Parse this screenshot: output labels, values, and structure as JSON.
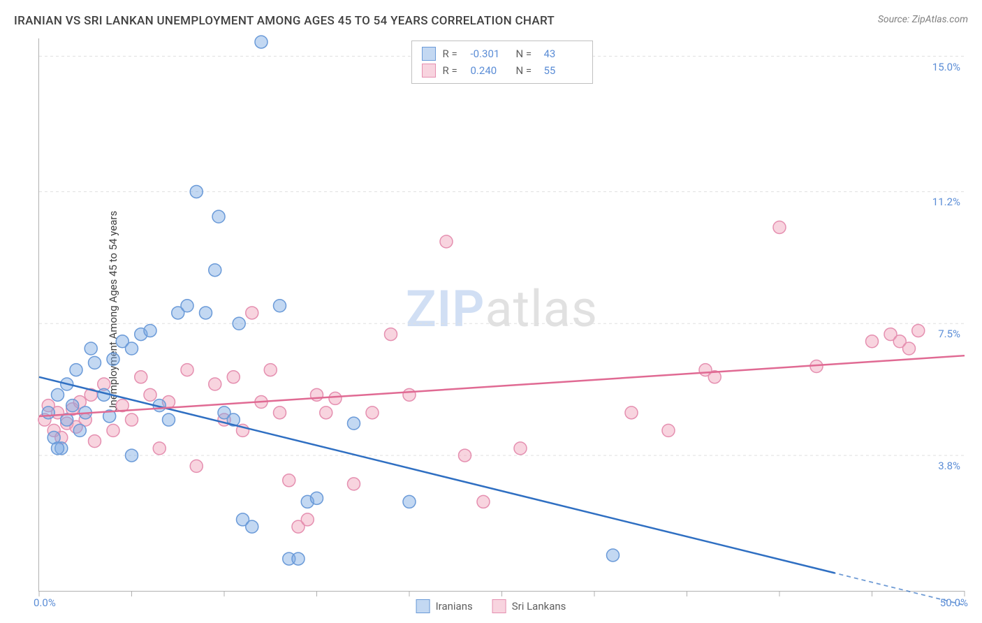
{
  "title": "IRANIAN VS SRI LANKAN UNEMPLOYMENT AMONG AGES 45 TO 54 YEARS CORRELATION CHART",
  "source": "Source: ZipAtlas.com",
  "ylabel": "Unemployment Among Ages 45 to 54 years",
  "watermark_a": "ZIP",
  "watermark_b": "atlas",
  "colors": {
    "blue_fill": "rgba(122,168,226,0.45)",
    "blue_stroke": "#6a9ad8",
    "pink_fill": "rgba(240,160,185,0.45)",
    "pink_stroke": "#e58fb0",
    "blue_line": "#2f6fc2",
    "pink_line": "#e06a93",
    "accent_text": "#5b8dd6",
    "grid": "#e0e0e0",
    "axis": "#b0b0b0",
    "background": "#ffffff"
  },
  "chart": {
    "type": "scatter",
    "xlim": [
      0,
      50
    ],
    "ylim": [
      0,
      15.5
    ],
    "x_ticks": [
      0,
      5,
      10,
      15,
      20,
      25,
      30,
      35,
      40,
      45,
      50
    ],
    "y_gridlines": [
      3.8,
      7.5,
      11.2,
      15.0
    ],
    "x_axis_labels": [
      {
        "v": 0,
        "t": "0.0%"
      },
      {
        "v": 50,
        "t": "50.0%"
      }
    ],
    "y_axis_labels": [
      {
        "v": 3.8,
        "t": "3.8%"
      },
      {
        "v": 7.5,
        "t": "7.5%"
      },
      {
        "v": 11.2,
        "t": "11.2%"
      },
      {
        "v": 15.0,
        "t": "15.0%"
      }
    ],
    "marker_radius": 9,
    "marker_stroke_width": 1.5,
    "line_width": 2.5,
    "title_fontsize": 17,
    "label_fontsize": 15
  },
  "stats": {
    "blue": {
      "R": "-0.301",
      "N": "43"
    },
    "pink": {
      "R": "0.240",
      "N": "55"
    }
  },
  "bottom_legend": {
    "blue": "Iranians",
    "pink": "Sri Lankans"
  },
  "series": {
    "iranians": {
      "points": [
        [
          0.5,
          5.0
        ],
        [
          0.8,
          4.3
        ],
        [
          1.0,
          5.5
        ],
        [
          1.2,
          4.0
        ],
        [
          1.5,
          4.8
        ],
        [
          1.5,
          5.8
        ],
        [
          1.8,
          5.2
        ],
        [
          2.0,
          6.2
        ],
        [
          2.2,
          4.5
        ],
        [
          2.5,
          5.0
        ],
        [
          2.8,
          6.8
        ],
        [
          3.0,
          6.4
        ],
        [
          3.5,
          5.5
        ],
        [
          3.8,
          4.9
        ],
        [
          4.0,
          6.5
        ],
        [
          4.5,
          7.0
        ],
        [
          5.0,
          6.8
        ],
        [
          5.5,
          7.2
        ],
        [
          6.0,
          7.3
        ],
        [
          6.5,
          5.2
        ],
        [
          7.0,
          4.8
        ],
        [
          7.5,
          7.8
        ],
        [
          8.0,
          8.0
        ],
        [
          8.5,
          11.2
        ],
        [
          9.0,
          7.8
        ],
        [
          9.5,
          9.0
        ],
        [
          9.7,
          10.5
        ],
        [
          10.0,
          5.0
        ],
        [
          10.5,
          4.8
        ],
        [
          10.8,
          7.5
        ],
        [
          5.0,
          3.8
        ],
        [
          11.0,
          2.0
        ],
        [
          11.5,
          1.8
        ],
        [
          12.0,
          15.4
        ],
        [
          13.0,
          8.0
        ],
        [
          13.5,
          0.9
        ],
        [
          14.0,
          0.9
        ],
        [
          14.5,
          2.5
        ],
        [
          15.0,
          2.6
        ],
        [
          17.0,
          4.7
        ],
        [
          20.0,
          2.5
        ],
        [
          31.0,
          1.0
        ],
        [
          1.0,
          4.0
        ]
      ],
      "trend": {
        "x1": 0,
        "y1": 6.0,
        "x2": 43,
        "y2": 0.5,
        "dash_from_x": 40,
        "dash_to_x": 50,
        "dash_y2": -0.4
      }
    },
    "srilankans": {
      "points": [
        [
          0.3,
          4.8
        ],
        [
          0.5,
          5.2
        ],
        [
          0.8,
          4.5
        ],
        [
          1.0,
          5.0
        ],
        [
          1.2,
          4.3
        ],
        [
          1.5,
          4.7
        ],
        [
          1.8,
          5.1
        ],
        [
          2.0,
          4.6
        ],
        [
          2.2,
          5.3
        ],
        [
          2.5,
          4.8
        ],
        [
          2.8,
          5.5
        ],
        [
          3.0,
          4.2
        ],
        [
          3.5,
          5.8
        ],
        [
          4.0,
          4.5
        ],
        [
          4.5,
          5.2
        ],
        [
          5.0,
          4.8
        ],
        [
          5.5,
          6.0
        ],
        [
          6.0,
          5.5
        ],
        [
          6.5,
          4.0
        ],
        [
          7.0,
          5.3
        ],
        [
          8.0,
          6.2
        ],
        [
          8.5,
          3.5
        ],
        [
          9.5,
          5.8
        ],
        [
          10.0,
          4.8
        ],
        [
          10.5,
          6.0
        ],
        [
          11.0,
          4.5
        ],
        [
          11.5,
          7.8
        ],
        [
          12.0,
          5.3
        ],
        [
          12.5,
          6.2
        ],
        [
          13.0,
          5.0
        ],
        [
          13.5,
          3.1
        ],
        [
          14.0,
          1.8
        ],
        [
          14.5,
          2.0
        ],
        [
          15.0,
          5.5
        ],
        [
          15.5,
          5.0
        ],
        [
          16.0,
          5.4
        ],
        [
          17.0,
          3.0
        ],
        [
          18.0,
          5.0
        ],
        [
          19.0,
          7.2
        ],
        [
          20.0,
          5.5
        ],
        [
          22.0,
          9.8
        ],
        [
          23.0,
          3.8
        ],
        [
          24.0,
          2.5
        ],
        [
          26.0,
          4.0
        ],
        [
          32.0,
          5.0
        ],
        [
          34.0,
          4.5
        ],
        [
          36.0,
          6.2
        ],
        [
          36.5,
          6.0
        ],
        [
          40.0,
          10.2
        ],
        [
          42.0,
          6.3
        ],
        [
          45.0,
          7.0
        ],
        [
          46.0,
          7.2
        ],
        [
          46.5,
          7.0
        ],
        [
          47.0,
          6.8
        ],
        [
          47.5,
          7.3
        ]
      ],
      "trend": {
        "x1": 0,
        "y1": 4.9,
        "x2": 50,
        "y2": 6.6
      }
    }
  }
}
